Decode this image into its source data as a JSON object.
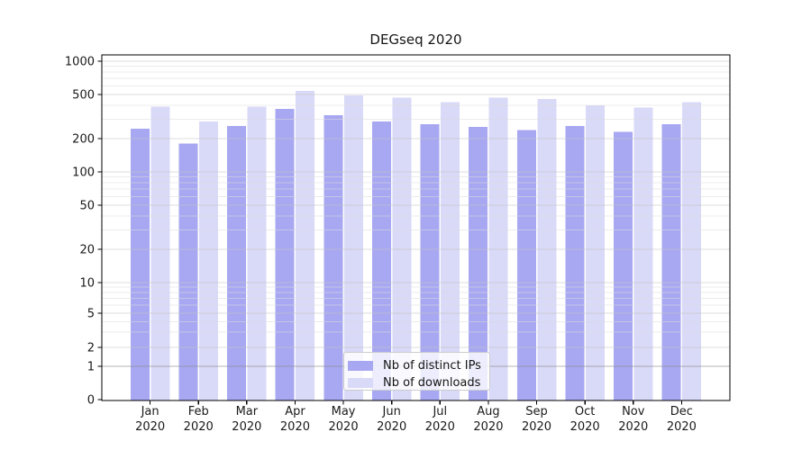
{
  "chart_data": {
    "type": "bar",
    "title": "DEGseq 2020",
    "categories": [
      "Jan",
      "Feb",
      "Mar",
      "Apr",
      "May",
      "Jun",
      "Jul",
      "Aug",
      "Sep",
      "Oct",
      "Nov",
      "Dec"
    ],
    "x_sublabel": "2020",
    "series": [
      {
        "name": "Nb of distinct IPs",
        "color": "#a7a7f2",
        "values": [
          245,
          180,
          260,
          370,
          325,
          285,
          270,
          255,
          240,
          260,
          230,
          270
        ]
      },
      {
        "name": "Nb of downloads",
        "color": "#d9d9f8",
        "values": [
          390,
          285,
          390,
          540,
          490,
          470,
          425,
          470,
          455,
          400,
          380,
          425
        ]
      }
    ],
    "y_axis": {
      "scale": "log-like",
      "tick_values": [
        0,
        1,
        2,
        5,
        10,
        20,
        50,
        100,
        200,
        500,
        1000
      ],
      "minor_gridlines": [
        3,
        4,
        6,
        7,
        8,
        9,
        30,
        40,
        60,
        70,
        80,
        90,
        300,
        400,
        600,
        700,
        800,
        900
      ],
      "range": [
        0,
        1000
      ]
    },
    "xlabel": "",
    "ylabel": "",
    "grid": true,
    "grid_above_bars": true,
    "legend": {
      "position": "lower-center-inside",
      "entries": [
        "Nb of distinct IPs",
        "Nb of downloads"
      ]
    },
    "colors": {
      "axis": "#000000",
      "tick_label": "#1a1a1a",
      "major_grid": "#c4c4c4",
      "minor_grid": "#dcdcdc",
      "baseline_grid": "#8c8c8c"
    }
  }
}
